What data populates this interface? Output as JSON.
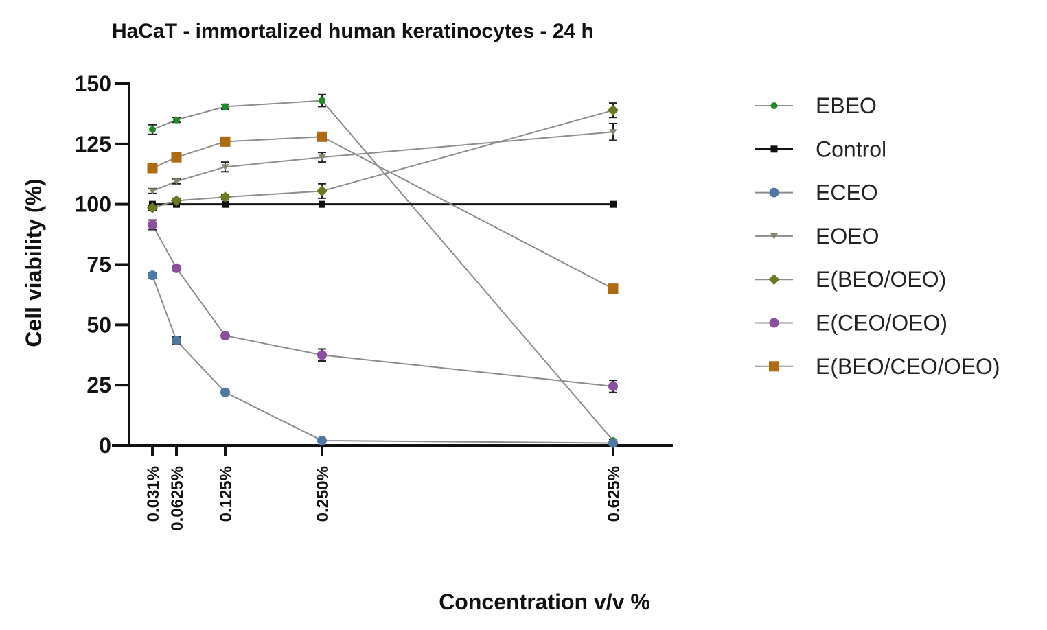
{
  "chart_data": {
    "type": "line",
    "title": "HaCaT - immortalized human keratinocytes - 24 h",
    "xlabel": "Concentration v/v %",
    "ylabel": "Cell viability (%)",
    "ylim": [
      0,
      150
    ],
    "yticks": [
      0,
      25,
      50,
      75,
      100,
      125,
      150
    ],
    "x": [
      0.031,
      0.0625,
      0.125,
      0.25,
      0.625
    ],
    "x_tick_labels": [
      "0.031%",
      "0.0625%",
      "0.125%",
      "0.250%",
      "0.625%"
    ],
    "legend_position": "right",
    "series": [
      {
        "name": "EBEO",
        "marker": "circle-small",
        "color": "#1e8a2a",
        "values": [
          131,
          135,
          140.5,
          143,
          2
        ],
        "errors": [
          2,
          1,
          1,
          2.5,
          0.5
        ]
      },
      {
        "name": "Control",
        "marker": "square-small",
        "color": "#111111",
        "values": [
          100,
          100,
          100,
          100,
          100
        ],
        "errors": [
          0,
          0,
          0,
          0,
          0
        ]
      },
      {
        "name": "ECEO",
        "marker": "circle",
        "color": "#4f78a4",
        "values": [
          70.5,
          43.5,
          22,
          2,
          1
        ],
        "errors": [
          1,
          1.5,
          1,
          0.5,
          0.5
        ]
      },
      {
        "name": "EOEO",
        "marker": "triangle-down",
        "color": "#7e8c6d",
        "values": [
          105.5,
          109.5,
          115.5,
          119.5,
          130
        ],
        "errors": [
          1,
          1,
          2,
          2,
          3.5
        ]
      },
      {
        "name": "E(BEO/OEO)",
        "marker": "diamond",
        "color": "#6b7a1e",
        "values": [
          98.5,
          101.5,
          103,
          105.5,
          139
        ],
        "errors": [
          1,
          1,
          1,
          3,
          3
        ]
      },
      {
        "name": "E(CEO/OEO)",
        "marker": "circle",
        "color": "#8a4f9e",
        "values": [
          91.5,
          73.5,
          45.5,
          37.5,
          24.5
        ],
        "errors": [
          2,
          1,
          1,
          2.5,
          2.5
        ]
      },
      {
        "name": "E(BEO/CEO/OEO)",
        "marker": "square",
        "color": "#b06a12",
        "values": [
          115,
          119.5,
          126,
          128,
          65
        ],
        "errors": [
          1,
          1,
          1,
          1,
          1.5
        ]
      }
    ]
  }
}
